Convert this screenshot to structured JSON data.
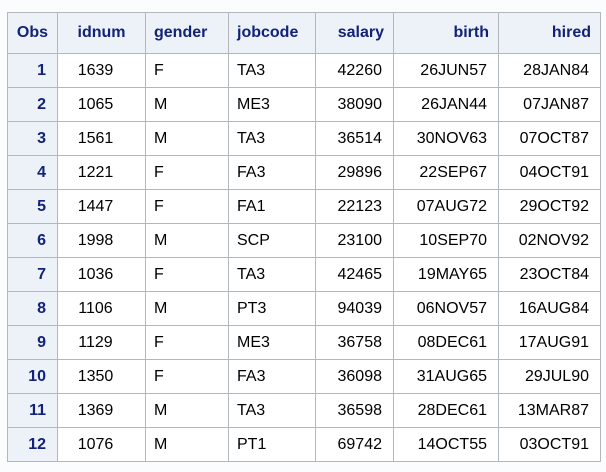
{
  "table": {
    "columns": [
      {
        "key": "obs",
        "label": "Obs",
        "align": "right"
      },
      {
        "key": "idnum",
        "label": "idnum",
        "align": "center"
      },
      {
        "key": "gender",
        "label": "gender",
        "align": "left"
      },
      {
        "key": "jobcode",
        "label": "jobcode",
        "align": "left"
      },
      {
        "key": "salary",
        "label": "salary",
        "align": "right"
      },
      {
        "key": "birth",
        "label": "birth",
        "align": "right"
      },
      {
        "key": "hired",
        "label": "hired",
        "align": "right"
      }
    ],
    "rows": [
      [
        "1",
        "1639",
        "F",
        "TA3",
        "42260",
        "26JUN57",
        "28JAN84"
      ],
      [
        "2",
        "1065",
        "M",
        "ME3",
        "38090",
        "26JAN44",
        "07JAN87"
      ],
      [
        "3",
        "1561",
        "M",
        "TA3",
        "36514",
        "30NOV63",
        "07OCT87"
      ],
      [
        "4",
        "1221",
        "F",
        "FA3",
        "29896",
        "22SEP67",
        "04OCT91"
      ],
      [
        "5",
        "1447",
        "F",
        "FA1",
        "22123",
        "07AUG72",
        "29OCT92"
      ],
      [
        "6",
        "1998",
        "M",
        "SCP",
        "23100",
        "10SEP70",
        "02NOV92"
      ],
      [
        "7",
        "1036",
        "F",
        "TA3",
        "42465",
        "19MAY65",
        "23OCT84"
      ],
      [
        "8",
        "1106",
        "M",
        "PT3",
        "94039",
        "06NOV57",
        "16AUG84"
      ],
      [
        "9",
        "1129",
        "F",
        "ME3",
        "36758",
        "08DEC61",
        "17AUG91"
      ],
      [
        "10",
        "1350",
        "F",
        "FA3",
        "36098",
        "31AUG65",
        "29JUL90"
      ],
      [
        "11",
        "1369",
        "M",
        "TA3",
        "36598",
        "28DEC61",
        "13MAR87"
      ],
      [
        "12",
        "1076",
        "M",
        "PT1",
        "69742",
        "14OCT55",
        "03OCT91"
      ]
    ]
  },
  "colors": {
    "header_background": "#edf2f9",
    "header_text": "#112277",
    "obs_cell_background": "#edf2f9",
    "obs_cell_text": "#112277",
    "data_cell_background": "#ffffff",
    "data_cell_text": "#000000",
    "border": "#b2b7bb",
    "page_background": "#fbfcfe"
  }
}
